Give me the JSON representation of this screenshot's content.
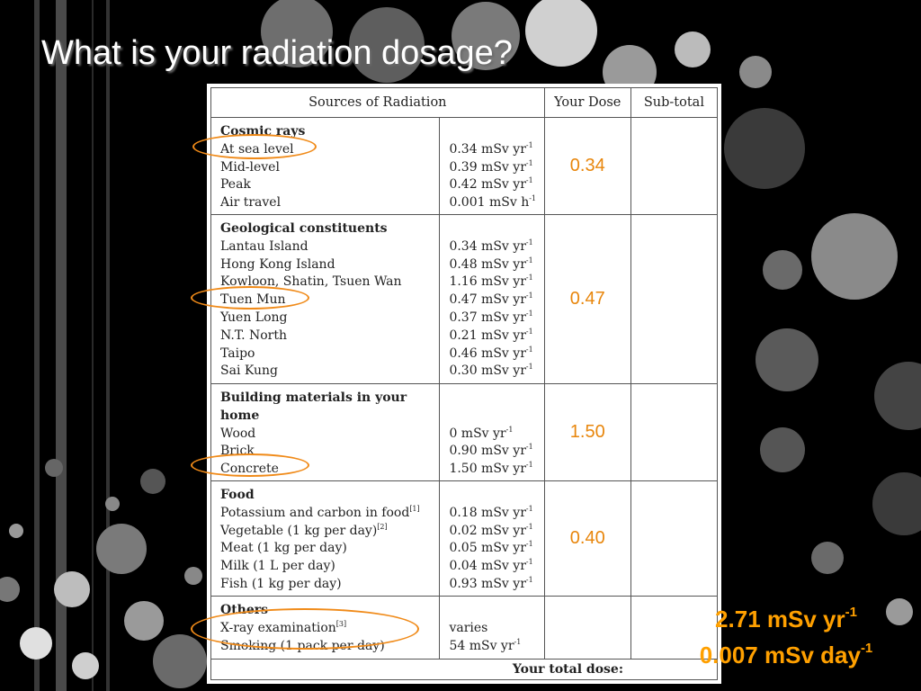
{
  "slide": {
    "title": "What is your radiation dosage?"
  },
  "table": {
    "headers": [
      "Sources of Radiation",
      "Your Dose",
      "Sub-total"
    ],
    "sections": [
      {
        "heading": "Cosmic rays",
        "your_dose": "0.34",
        "rows": [
          {
            "label": "At sea level",
            "value": "0.34 mSv yr",
            "exp": "-1"
          },
          {
            "label": "Mid-level",
            "value": "0.39 mSv yr",
            "exp": "-1"
          },
          {
            "label": "Peak",
            "value": "0.42 mSv yr",
            "exp": "-1"
          },
          {
            "label": "Air travel",
            "value": "0.001 mSv h",
            "exp": "-1"
          }
        ]
      },
      {
        "heading": "Geological constituents",
        "your_dose": "0.47",
        "rows": [
          {
            "label": "Lantau Island",
            "value": "0.34 mSv yr",
            "exp": "-1"
          },
          {
            "label": "Hong Kong Island",
            "value": "0.48 mSv yr",
            "exp": "-1"
          },
          {
            "label": "Kowloon, Shatin, Tsuen Wan",
            "value": "1.16 mSv yr",
            "exp": "-1"
          },
          {
            "label": "Tuen Mun",
            "value": "0.47 mSv yr",
            "exp": "-1"
          },
          {
            "label": "Yuen Long",
            "value": "0.37 mSv yr",
            "exp": "-1"
          },
          {
            "label": "N.T. North",
            "value": "0.21 mSv yr",
            "exp": "-1"
          },
          {
            "label": "Taipo",
            "value": "0.46 mSv yr",
            "exp": "-1"
          },
          {
            "label": "Sai Kung",
            "value": "0.30 mSv yr",
            "exp": "-1"
          }
        ]
      },
      {
        "heading_line1": "Building materials in your",
        "heading_line2": "home",
        "your_dose": "1.50",
        "rows": [
          {
            "label": "Wood",
            "value": "0 mSv yr",
            "exp": "-1"
          },
          {
            "label": "Brick",
            "value": "0.90 mSv yr",
            "exp": "-1"
          },
          {
            "label": "Concrete",
            "value": "1.50 mSv yr",
            "exp": "-1"
          }
        ]
      },
      {
        "heading": "Food",
        "your_dose": "0.40",
        "rows": [
          {
            "label": "Potassium and carbon in food",
            "ref": "[1]",
            "value": "0.18 mSv yr",
            "exp": "-1"
          },
          {
            "label": "Vegetable (1 kg per day)",
            "ref": "[2]",
            "value": "0.02 mSv yr",
            "exp": "-1"
          },
          {
            "label": "Meat (1 kg per day)",
            "value": "0.05 mSv yr",
            "exp": "-1"
          },
          {
            "label": "Milk (1 L per day)",
            "value": "0.04 mSv yr",
            "exp": "-1"
          },
          {
            "label": "Fish (1 kg per day)",
            "value": "0.93 mSv yr",
            "exp": "-1"
          }
        ]
      },
      {
        "heading": "Others",
        "your_dose": "",
        "rows": [
          {
            "label": "X-ray examination",
            "ref": "[3]",
            "value": "varies"
          },
          {
            "label": "Smoking (1 pack per day)",
            "value": "54 mSv yr",
            "exp": "-1"
          }
        ]
      }
    ],
    "total_label": "Your total dose:"
  },
  "result": {
    "yearly_value": "2.71 mSv yr",
    "yearly_exp": "-1",
    "daily_value": "0.007 mSv day",
    "daily_exp": "-1"
  },
  "colors": {
    "background": "#000000",
    "highlight": "#f08a18",
    "dose_text": "#e8860c",
    "result_text": "#ffa000"
  }
}
